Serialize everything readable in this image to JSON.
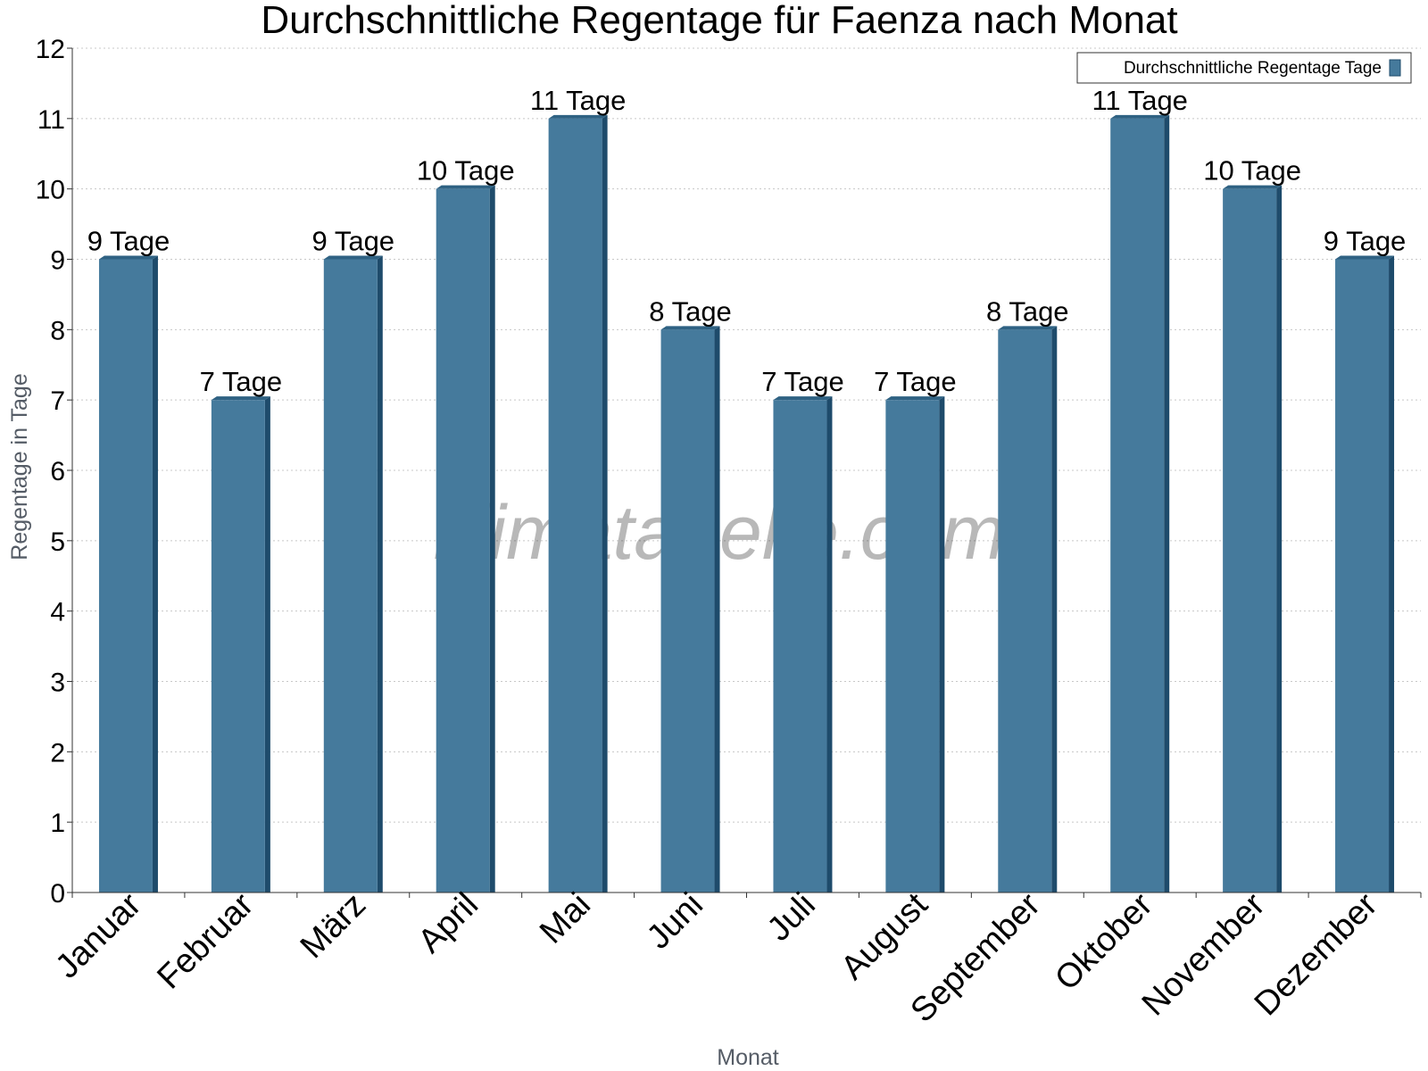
{
  "watermark": "klimatabelle.com",
  "colors": {
    "bar_face": "#457a9c",
    "bar_side": "#1e4b6b",
    "bar_top": "#2f6283",
    "grid": "#c8c8c8",
    "axis": "#333333"
  },
  "chart_data": {
    "type": "bar",
    "title": "Durchschnittliche Regentage für Faenza nach Monat",
    "xlabel": "Monat",
    "ylabel": "Regentage in Tage",
    "ylim": [
      0,
      12
    ],
    "yticks": [
      "0",
      "1",
      "2",
      "3",
      "4",
      "5",
      "6",
      "7",
      "8",
      "9",
      "10",
      "11",
      "12"
    ],
    "grid": true,
    "legend_position": "top-right",
    "categories": [
      "Januar",
      "Februar",
      "März",
      "April",
      "Mai",
      "Juni",
      "Juli",
      "August",
      "September",
      "Oktober",
      "November",
      "Dezember"
    ],
    "series": [
      {
        "name": "Durchschnittliche Regentage Tage",
        "values": [
          9,
          7,
          9,
          10,
          11,
          8,
          7,
          7,
          8,
          11,
          10,
          9
        ],
        "labels": [
          "9 Tage",
          "7 Tage",
          "9 Tage",
          "10 Tage",
          "11 Tage",
          "8 Tage",
          "7 Tage",
          "7 Tage",
          "8 Tage",
          "11 Tage",
          "10 Tage",
          "9 Tage"
        ]
      }
    ]
  }
}
